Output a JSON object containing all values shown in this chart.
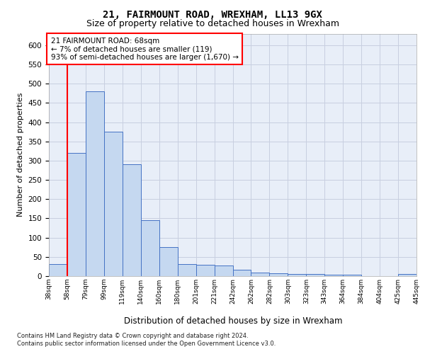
{
  "title": "21, FAIRMOUNT ROAD, WREXHAM, LL13 9GX",
  "subtitle": "Size of property relative to detached houses in Wrexham",
  "xlabel": "Distribution of detached houses by size in Wrexham",
  "ylabel": "Number of detached properties",
  "bar_values": [
    32,
    320,
    480,
    375,
    290,
    145,
    76,
    32,
    29,
    27,
    16,
    9,
    7,
    5,
    5,
    4,
    4,
    0,
    0,
    6
  ],
  "bar_labels": [
    "38sqm",
    "58sqm",
    "79sqm",
    "99sqm",
    "119sqm",
    "140sqm",
    "160sqm",
    "180sqm",
    "201sqm",
    "221sqm",
    "242sqm",
    "262sqm",
    "282sqm",
    "303sqm",
    "323sqm",
    "343sqm",
    "364sqm",
    "384sqm",
    "404sqm",
    "425sqm",
    "445sqm"
  ],
  "bar_color": "#c5d8f0",
  "bar_edge_color": "#4472c4",
  "ylim_max": 630,
  "yticks": [
    0,
    50,
    100,
    150,
    200,
    250,
    300,
    350,
    400,
    450,
    500,
    550,
    600
  ],
  "red_line_x": 1.0,
  "annotation_text": "21 FAIRMOUNT ROAD: 68sqm\n← 7% of detached houses are smaller (119)\n93% of semi-detached houses are larger (1,670) →",
  "footer_line1": "Contains HM Land Registry data © Crown copyright and database right 2024.",
  "footer_line2": "Contains public sector information licensed under the Open Government Licence v3.0.",
  "bg_color": "#e8eef8",
  "grid_color": "#c8cfe0",
  "title_fontsize": 10,
  "subtitle_fontsize": 9
}
